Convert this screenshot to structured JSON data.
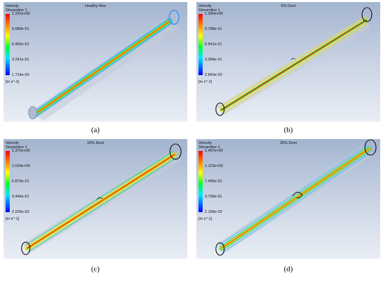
{
  "panels": [
    {
      "title": "Healthy flow",
      "legend_title": "Velocity",
      "legend_subtitle": "Streamline 1",
      "ticks": [
        "1.291e+00",
        "9.689e-01",
        "6.465e-01",
        "3.241e-01",
        "1.714e-03"
      ],
      "unit": "[m s^-1]",
      "caption": "(a)"
    },
    {
      "title": "5% Dent",
      "legend_title": "Velocity",
      "legend_subtitle": "Streamline 1",
      "ticks": [
        "1.306e+00",
        "9.798e-01",
        "6.541e-01",
        "3.284e-01",
        "2.643e-03"
      ],
      "unit": "[m s^-1]",
      "caption": "(b)"
    },
    {
      "title": "15% Dent",
      "legend_title": "Velocity",
      "legend_subtitle": "Streamline 1",
      "ticks": [
        "1.372e+00",
        "1.029e+00",
        "6.870e-01",
        "3.446e-01",
        "2.236e-03"
      ],
      "unit": "[m s^-1]",
      "caption": "(c)"
    },
    {
      "title": "30% Dent",
      "legend_title": "Velocity",
      "legend_subtitle": "Streamline 1",
      "ticks": [
        "1.497e+00",
        "1.123e+00",
        "7.495e-01",
        "3.758e-01",
        "2.108e-03"
      ],
      "unit": "[m s^-1]",
      "caption": "(d)"
    }
  ],
  "colors": {
    "high": "#ff0000",
    "mid_high": "#ffff00",
    "mid": "#00ff30",
    "low": "#00e8ff",
    "min": "#0000ff"
  }
}
